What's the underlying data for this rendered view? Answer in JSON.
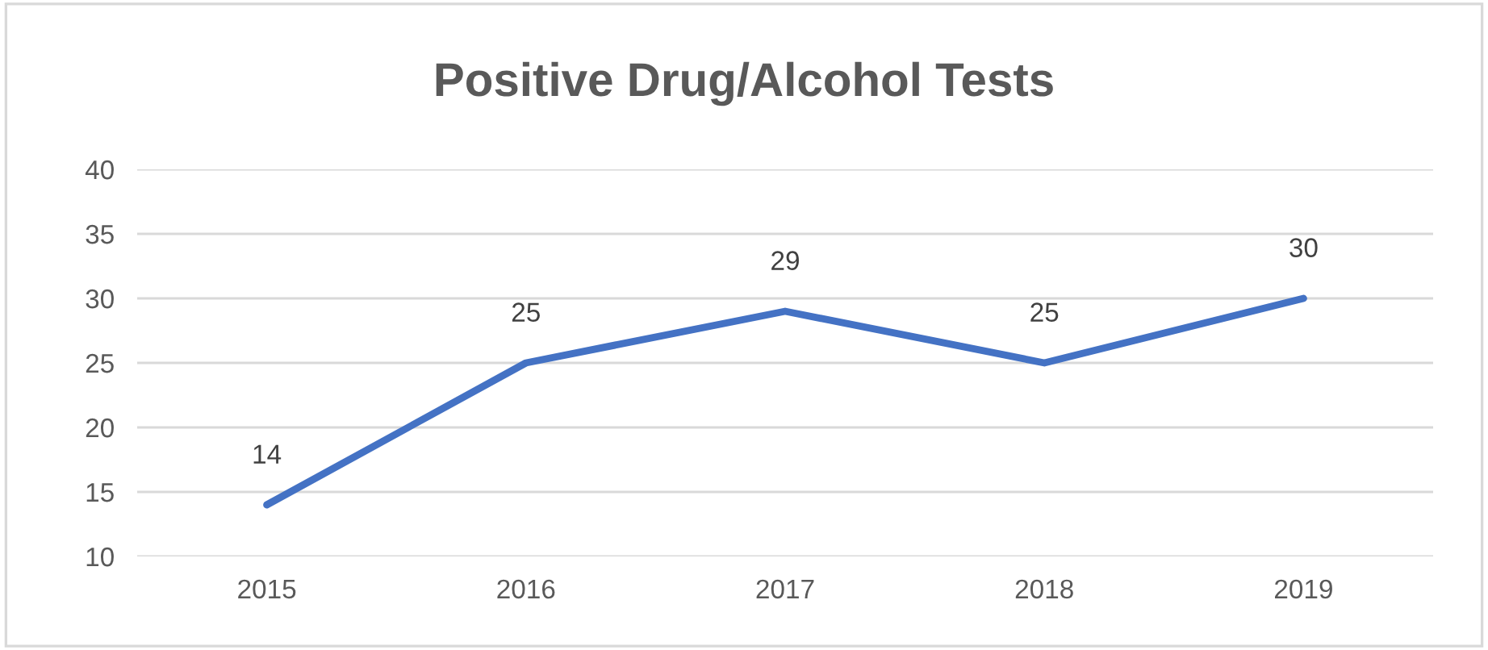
{
  "chart_data": {
    "type": "line",
    "title": "Positive Drug/Alcohol Tests",
    "categories": [
      "2015",
      "2016",
      "2017",
      "2018",
      "2019"
    ],
    "series": [
      {
        "color": "#4472c4",
        "values": [
          14,
          25,
          29,
          25,
          30
        ]
      }
    ],
    "ylim": [
      10,
      40
    ],
    "yticks": [
      10,
      15,
      20,
      25,
      30,
      35,
      40
    ],
    "grid": "y",
    "data_labels": true,
    "marker": "none",
    "line_style": "solid"
  }
}
